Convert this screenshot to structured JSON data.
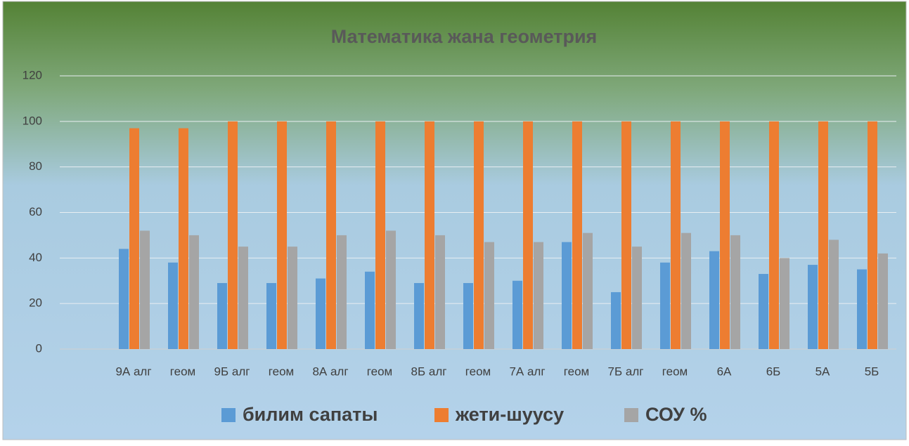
{
  "chart_data": {
    "type": "bar",
    "title": "Математика жана геометрия",
    "categories": [
      null,
      "9А алг",
      "геом",
      "9Б алг",
      "геом",
      "8А алг",
      "геом",
      "8Б алг",
      "геом",
      "7А алг",
      "геом",
      "7Б алг",
      "геом",
      "6А",
      "6Б",
      "5А",
      "5Б"
    ],
    "series": [
      {
        "name": "билим сапаты",
        "color": "#5b9bd5",
        "values": [
          null,
          44,
          38,
          29,
          29,
          31,
          34,
          29,
          29,
          30,
          47,
          25,
          38,
          43,
          33,
          37,
          35
        ]
      },
      {
        "name": "жети-шуусу",
        "color": "#ed7d31",
        "values": [
          null,
          97,
          97,
          100,
          100,
          100,
          100,
          100,
          100,
          100,
          100,
          100,
          100,
          100,
          100,
          100,
          100
        ]
      },
      {
        "name": "СОУ %",
        "color": "#a5a5a5",
        "values": [
          null,
          52,
          50,
          45,
          45,
          50,
          52,
          50,
          47,
          47,
          51,
          45,
          51,
          50,
          40,
          48,
          42
        ]
      }
    ],
    "ylim": [
      0,
      120
    ],
    "yticks": [
      0,
      20,
      40,
      60,
      80,
      100,
      120
    ],
    "grid": true,
    "legend": "bottom"
  }
}
